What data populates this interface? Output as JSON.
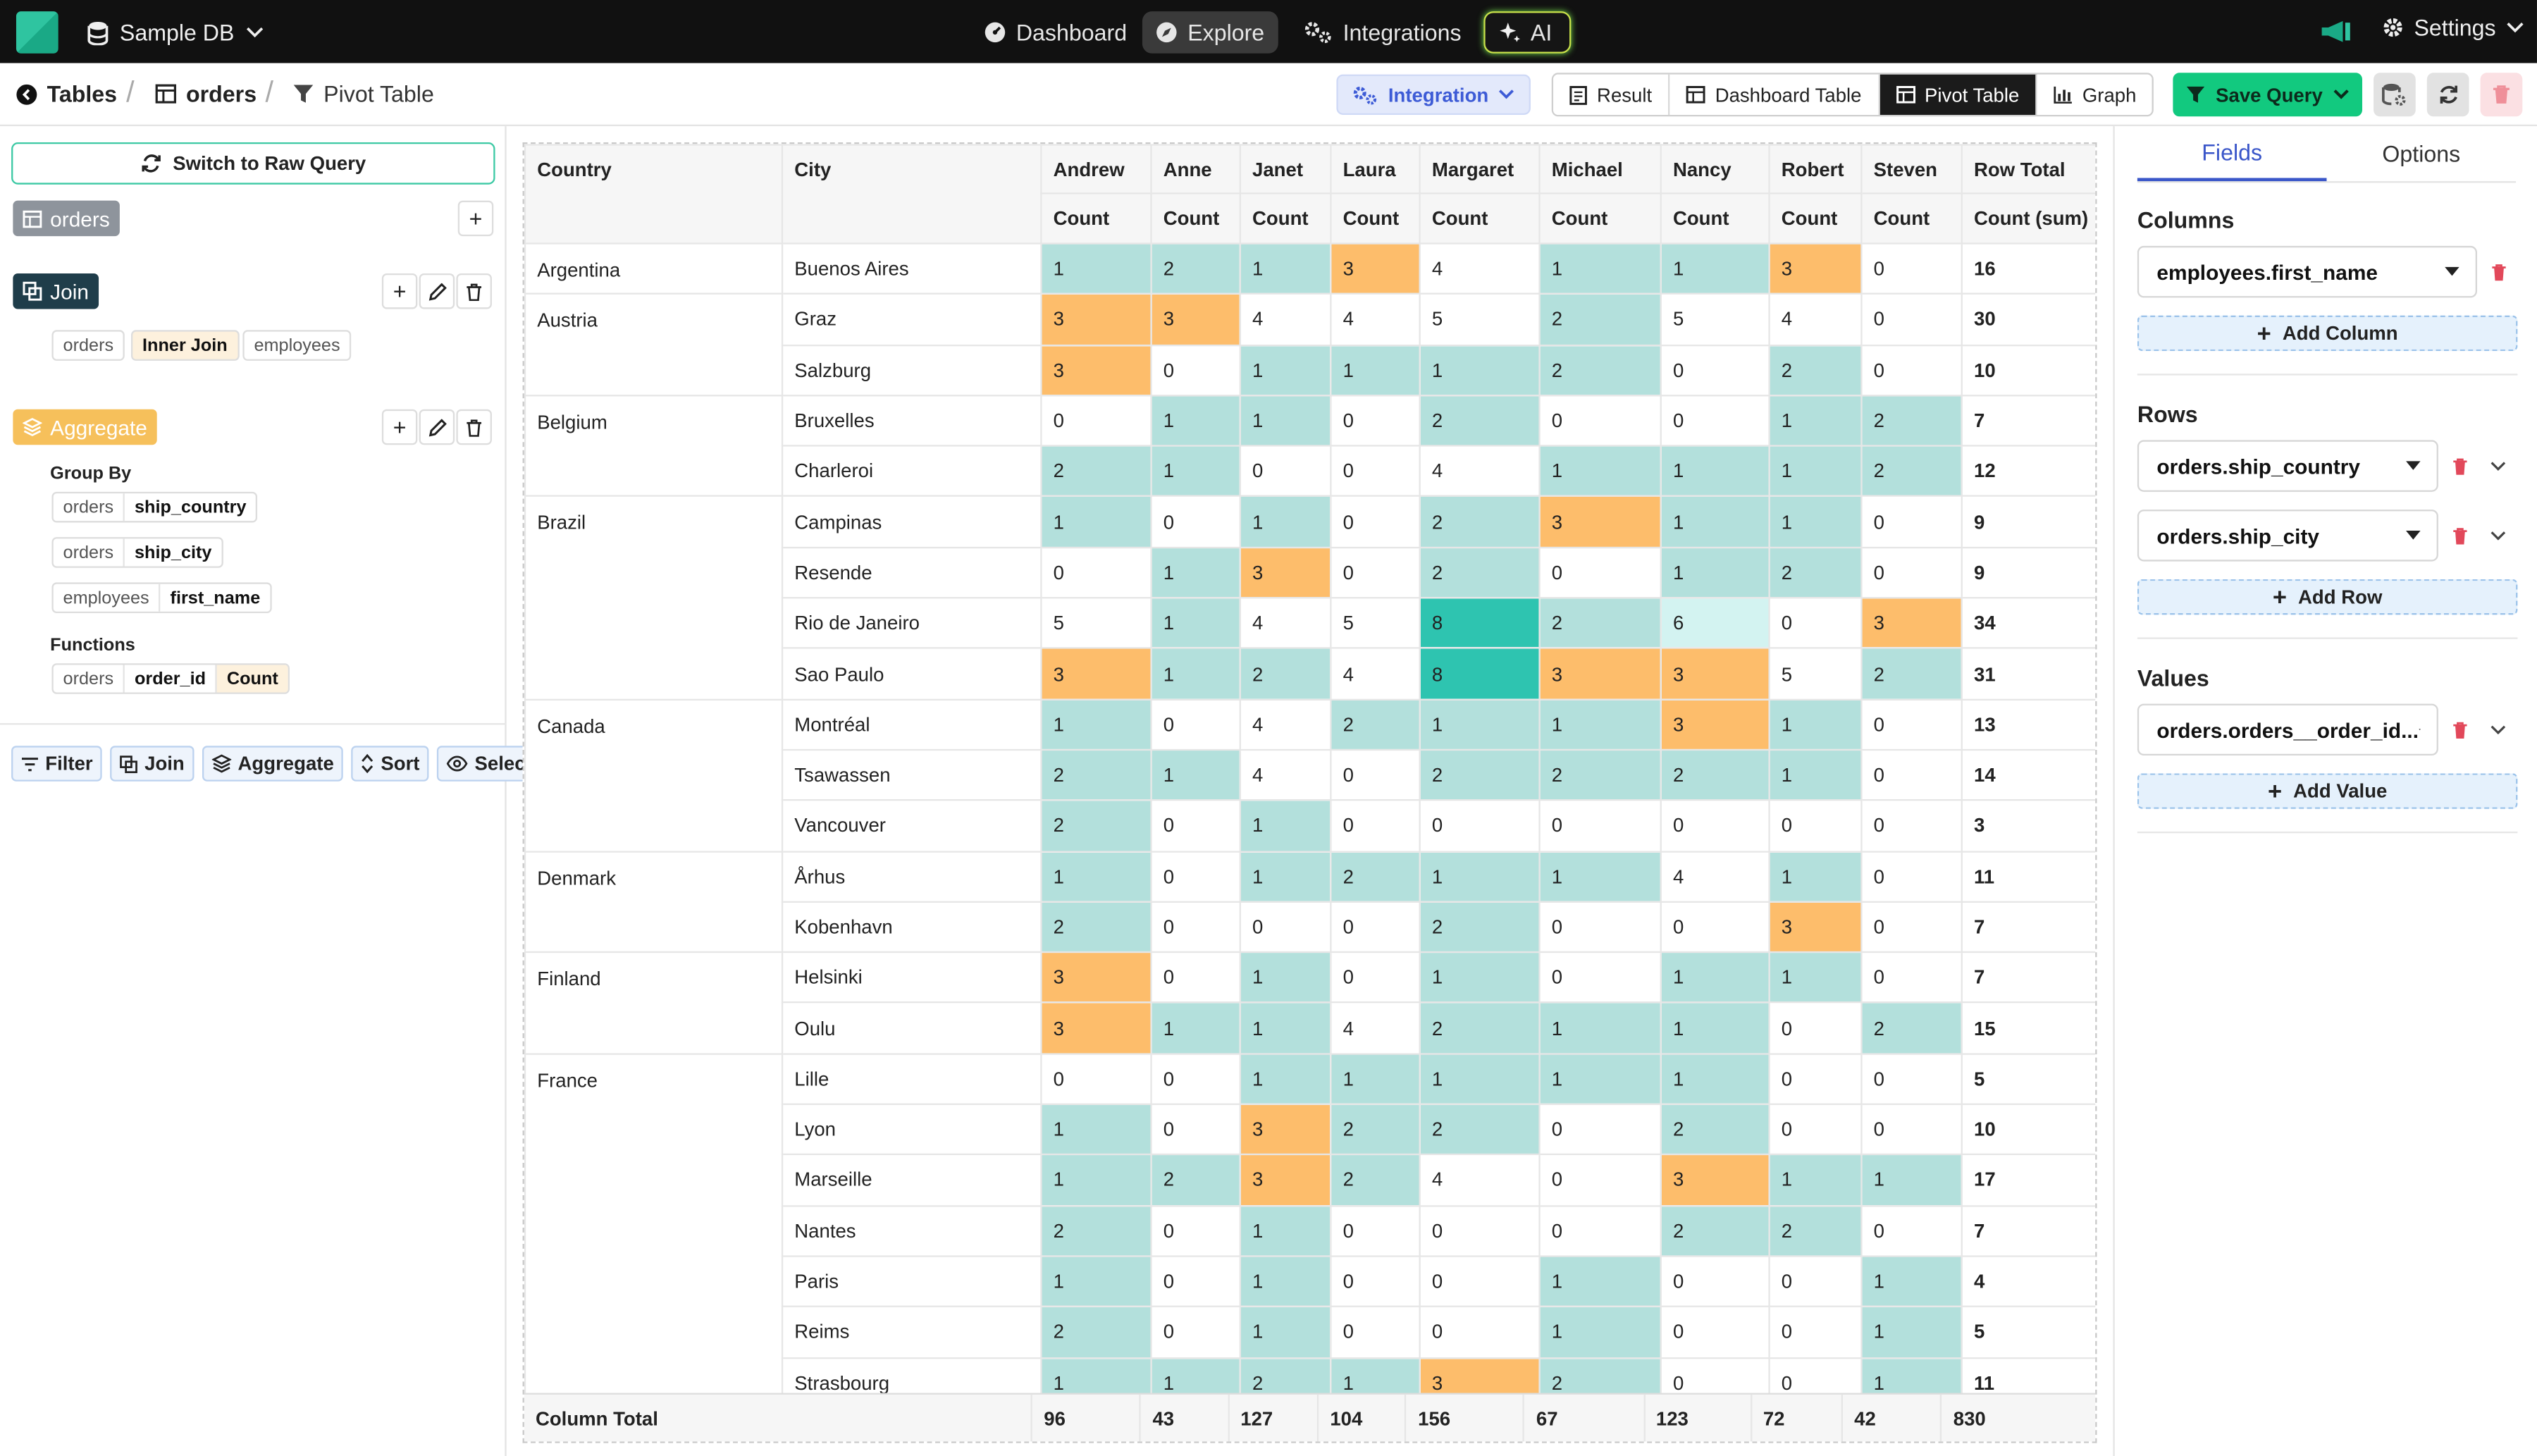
{
  "topbar": {
    "db_name": "Sample DB",
    "nav": [
      "Dashboard",
      "Explore",
      "Integrations",
      "AI"
    ],
    "settings_label": "Settings"
  },
  "breadcrumb": {
    "tables_label": "Tables",
    "orders_label": "orders",
    "pivot_label": "Pivot Table"
  },
  "toolbar": {
    "integration_label": "Integration",
    "views": [
      "Result",
      "Dashboard Table",
      "Pivot Table",
      "Graph"
    ],
    "active_view": "Pivot Table",
    "save_label": "Save Query"
  },
  "query_builder": {
    "switch_label": "Switch to Raw Query",
    "source_table": "orders",
    "join": {
      "label": "Join",
      "left": "orders",
      "type": "Inner Join",
      "right": "employees"
    },
    "aggregate": {
      "label": "Aggregate",
      "group_by_label": "Group By",
      "group_by": [
        {
          "table": "orders",
          "field": "ship_country"
        },
        {
          "table": "orders",
          "field": "ship_city"
        },
        {
          "table": "employees",
          "field": "first_name"
        }
      ],
      "functions_label": "Functions",
      "functions": [
        {
          "table": "orders",
          "field": "order_id",
          "fn": "Count"
        }
      ]
    },
    "tools": [
      "Filter",
      "Join",
      "Aggregate",
      "Sort",
      "Select"
    ]
  },
  "pivot": {
    "header_country": "Country",
    "header_city": "City",
    "employees": [
      "Andrew",
      "Anne",
      "Janet",
      "Laura",
      "Margaret",
      "Michael",
      "Nancy",
      "Robert",
      "Steven"
    ],
    "measure_label": "Count",
    "row_total_label": "Row Total",
    "row_total_measure": "Count (sum)",
    "rows": [
      {
        "country": "Argentina",
        "city": "Buenos Aires",
        "values": [
          1,
          2,
          1,
          3,
          4,
          1,
          1,
          3,
          0
        ],
        "total": 16
      },
      {
        "country": "Austria",
        "city": "Graz",
        "values": [
          3,
          3,
          4,
          4,
          5,
          2,
          5,
          4,
          0
        ],
        "total": 30
      },
      {
        "country": "",
        "city": "Salzburg",
        "values": [
          3,
          0,
          1,
          1,
          1,
          2,
          0,
          2,
          0
        ],
        "total": 10
      },
      {
        "country": "Belgium",
        "city": "Bruxelles",
        "values": [
          0,
          1,
          1,
          0,
          2,
          0,
          0,
          1,
          2
        ],
        "total": 7
      },
      {
        "country": "",
        "city": "Charleroi",
        "values": [
          2,
          1,
          0,
          0,
          4,
          1,
          1,
          1,
          2
        ],
        "total": 12
      },
      {
        "country": "Brazil",
        "city": "Campinas",
        "values": [
          1,
          0,
          1,
          0,
          2,
          3,
          1,
          1,
          0
        ],
        "total": 9
      },
      {
        "country": "",
        "city": "Resende",
        "values": [
          0,
          1,
          3,
          0,
          2,
          0,
          1,
          2,
          0
        ],
        "total": 9
      },
      {
        "country": "",
        "city": "Rio de Janeiro",
        "values": [
          5,
          1,
          4,
          5,
          8,
          2,
          6,
          0,
          3
        ],
        "total": 34
      },
      {
        "country": "",
        "city": "Sao Paulo",
        "values": [
          3,
          1,
          2,
          4,
          8,
          3,
          3,
          5,
          2
        ],
        "total": 31
      },
      {
        "country": "Canada",
        "city": "Montréal",
        "values": [
          1,
          0,
          4,
          2,
          1,
          1,
          3,
          1,
          0
        ],
        "total": 13
      },
      {
        "country": "",
        "city": "Tsawassen",
        "values": [
          2,
          1,
          4,
          0,
          2,
          2,
          2,
          1,
          0
        ],
        "total": 14
      },
      {
        "country": "",
        "city": "Vancouver",
        "values": [
          2,
          0,
          1,
          0,
          0,
          0,
          0,
          0,
          0
        ],
        "total": 3
      },
      {
        "country": "Denmark",
        "city": "Århus",
        "values": [
          1,
          0,
          1,
          2,
          1,
          1,
          4,
          1,
          0
        ],
        "total": 11
      },
      {
        "country": "",
        "city": "Kobenhavn",
        "values": [
          2,
          0,
          0,
          0,
          2,
          0,
          0,
          3,
          0
        ],
        "total": 7
      },
      {
        "country": "Finland",
        "city": "Helsinki",
        "values": [
          3,
          0,
          1,
          0,
          1,
          0,
          1,
          1,
          0
        ],
        "total": 7
      },
      {
        "country": "",
        "city": "Oulu",
        "values": [
          3,
          1,
          1,
          4,
          2,
          1,
          1,
          0,
          2
        ],
        "total": 15
      },
      {
        "country": "France",
        "city": "Lille",
        "values": [
          0,
          0,
          1,
          1,
          1,
          1,
          1,
          0,
          0
        ],
        "total": 5
      },
      {
        "country": "",
        "city": "Lyon",
        "values": [
          1,
          0,
          3,
          2,
          2,
          0,
          2,
          0,
          0
        ],
        "total": 10
      },
      {
        "country": "",
        "city": "Marseille",
        "values": [
          1,
          2,
          3,
          2,
          4,
          0,
          3,
          1,
          1
        ],
        "total": 17
      },
      {
        "country": "",
        "city": "Nantes",
        "values": [
          2,
          0,
          1,
          0,
          0,
          0,
          2,
          2,
          0
        ],
        "total": 7
      },
      {
        "country": "",
        "city": "Paris",
        "values": [
          1,
          0,
          1,
          0,
          0,
          1,
          0,
          0,
          1
        ],
        "total": 4
      },
      {
        "country": "",
        "city": "Reims",
        "values": [
          2,
          0,
          1,
          0,
          0,
          1,
          0,
          0,
          1
        ],
        "total": 5
      },
      {
        "country": "",
        "city": "Strasbourg",
        "values": [
          1,
          1,
          2,
          1,
          3,
          2,
          0,
          0,
          1
        ],
        "total": 11
      }
    ],
    "column_total_label": "Column Total",
    "column_totals": [
      96,
      43,
      127,
      104,
      156,
      67,
      123,
      72,
      42
    ],
    "grand_total": 830,
    "colors": {
      "teal": "#b3e0dc",
      "orange": "#fdbd6b",
      "dark_teal": "#2ec4b0",
      "light_teal": "#d3f3f1"
    }
  },
  "fields_panel": {
    "tabs": [
      "Fields",
      "Options"
    ],
    "columns_label": "Columns",
    "columns": [
      "employees.first_name"
    ],
    "add_column": "Add Column",
    "rows_label": "Rows",
    "rows": [
      "orders.ship_country",
      "orders.ship_city"
    ],
    "add_row": "Add Row",
    "values_label": "Values",
    "values": [
      "orders.orders__order_id..."
    ],
    "add_value": "Add Value"
  }
}
